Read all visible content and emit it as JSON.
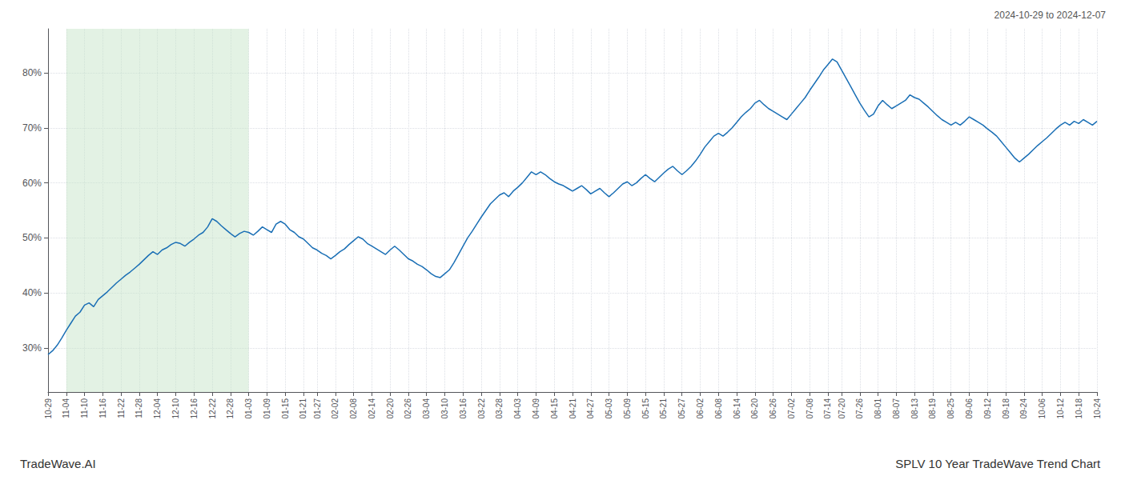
{
  "chart_data": {
    "type": "line",
    "title": "SPLV 10 Year TradeWave Trend Chart",
    "subtitle": "2024-10-29 to 2024-12-07",
    "annotations": [
      "TradeWave.AI"
    ],
    "color": "#1a6fb5",
    "grid": true,
    "ylim": [
      22,
      88
    ],
    "yticks": [
      {
        "value": 30,
        "label": "30%"
      },
      {
        "value": 40,
        "label": "40%"
      },
      {
        "value": 50,
        "label": "50%"
      },
      {
        "value": 60,
        "label": "60%"
      },
      {
        "value": 70,
        "label": "70%"
      },
      {
        "value": 80,
        "label": "80%"
      }
    ],
    "shaded": {
      "from": "11-04",
      "to": "01-03",
      "color": "#c8e6c9"
    },
    "categories": [
      "10-29",
      null,
      null,
      null,
      "11-04",
      null,
      null,
      null,
      "11-10",
      null,
      null,
      null,
      "11-16",
      null,
      null,
      null,
      "11-22",
      null,
      null,
      null,
      "11-28",
      null,
      null,
      null,
      "12-04",
      null,
      null,
      null,
      "12-10",
      null,
      null,
      null,
      "12-16",
      null,
      null,
      null,
      "12-22",
      null,
      null,
      null,
      "12-28",
      null,
      null,
      null,
      "01-03",
      null,
      null,
      null,
      "01-09",
      null,
      null,
      null,
      "01-15",
      null,
      null,
      null,
      "01-21",
      null,
      null,
      "01-27",
      null,
      null,
      null,
      "02-02",
      null,
      null,
      null,
      "02-08",
      null,
      null,
      null,
      "02-14",
      null,
      null,
      null,
      "02-20",
      null,
      null,
      null,
      "02-26",
      null,
      null,
      null,
      "03-04",
      null,
      null,
      null,
      "03-10",
      null,
      null,
      null,
      "03-16",
      null,
      null,
      null,
      "03-22",
      null,
      null,
      null,
      "03-28",
      null,
      null,
      null,
      "04-03",
      null,
      null,
      null,
      "04-09",
      null,
      null,
      null,
      "04-15",
      null,
      null,
      null,
      "04-21",
      null,
      null,
      null,
      "04-27",
      null,
      null,
      null,
      "05-03",
      null,
      null,
      null,
      "05-09",
      null,
      null,
      null,
      "05-15",
      null,
      null,
      null,
      "05-21",
      null,
      null,
      null,
      "05-27",
      null,
      null,
      null,
      "06-02",
      null,
      null,
      null,
      "06-08",
      null,
      null,
      null,
      "06-14",
      null,
      null,
      null,
      "06-20",
      null,
      null,
      null,
      "06-26",
      null,
      null,
      null,
      "07-02",
      null,
      null,
      null,
      "07-08",
      null,
      null,
      null,
      "07-14",
      null,
      null,
      "07-20",
      null,
      null,
      null,
      "07-26",
      null,
      null,
      null,
      "08-01",
      null,
      null,
      null,
      "08-07",
      null,
      null,
      null,
      "08-13",
      null,
      null,
      null,
      "08-19",
      null,
      null,
      null,
      "08-25",
      null,
      null,
      null,
      "09-06",
      null,
      null,
      null,
      "09-12",
      null,
      null,
      null,
      "09-18",
      null,
      null,
      null,
      "09-24",
      null,
      null,
      null,
      "10-06",
      null,
      null,
      null,
      "10-12",
      null,
      null,
      null,
      "10-18",
      null,
      null,
      null,
      "10-24"
    ],
    "values": [
      28.8,
      29.5,
      30.5,
      31.8,
      33.2,
      34.5,
      35.8,
      36.5,
      37.8,
      38.2,
      37.5,
      38.8,
      39.5,
      40.2,
      41.0,
      41.8,
      42.5,
      43.2,
      43.8,
      44.5,
      45.2,
      46.0,
      46.8,
      47.5,
      47.0,
      47.8,
      48.2,
      48.8,
      49.2,
      49.0,
      48.5,
      49.2,
      49.8,
      50.5,
      51.0,
      52.0,
      53.5,
      53.0,
      52.2,
      51.5,
      50.8,
      50.2,
      50.8,
      51.2,
      51.0,
      50.5,
      51.2,
      52.0,
      51.5,
      51.0,
      52.5,
      53.0,
      52.5,
      51.5,
      51.0,
      50.2,
      49.8,
      49.0,
      48.2,
      47.8,
      47.2,
      46.8,
      46.2,
      46.8,
      47.5,
      48.0,
      48.8,
      49.5,
      50.2,
      49.8,
      49.0,
      48.5,
      48.0,
      47.5,
      47.0,
      47.8,
      48.5,
      47.8,
      47.0,
      46.2,
      45.8,
      45.2,
      44.8,
      44.2,
      43.5,
      43.0,
      42.8,
      43.5,
      44.2,
      45.5,
      47.0,
      48.5,
      50.0,
      51.2,
      52.5,
      53.8,
      55.0,
      56.2,
      57.0,
      57.8,
      58.2,
      57.5,
      58.5,
      59.2,
      60.0,
      61.0,
      62.0,
      61.5,
      62.0,
      61.5,
      60.8,
      60.2,
      59.8,
      59.5,
      59.0,
      58.5,
      59.0,
      59.5,
      58.8,
      58.0,
      58.5,
      59.0,
      58.2,
      57.5,
      58.2,
      59.0,
      59.8,
      60.2,
      59.5,
      60.0,
      60.8,
      61.5,
      60.8,
      60.2,
      61.0,
      61.8,
      62.5,
      63.0,
      62.2,
      61.5,
      62.2,
      63.0,
      64.0,
      65.2,
      66.5,
      67.5,
      68.5,
      69.0,
      68.5,
      69.2,
      70.0,
      71.0,
      72.0,
      72.8,
      73.5,
      74.5,
      75.0,
      74.2,
      73.5,
      73.0,
      72.5,
      72.0,
      71.5,
      72.5,
      73.5,
      74.5,
      75.5,
      76.8,
      78.0,
      79.2,
      80.5,
      81.5,
      82.5,
      82.0,
      80.5,
      79.0,
      77.5,
      76.0,
      74.5,
      73.2,
      72.0,
      72.5,
      74.0,
      75.0,
      74.2,
      73.5,
      74.0,
      74.5,
      75.0,
      76.0,
      75.5,
      75.2,
      74.5,
      73.8,
      73.0,
      72.2,
      71.5,
      71.0,
      70.5,
      71.0,
      70.5,
      71.2,
      72.0,
      71.5,
      71.0,
      70.5,
      69.8,
      69.2,
      68.5,
      67.5,
      66.5,
      65.5,
      64.5,
      63.8,
      64.5,
      65.2,
      66.0,
      66.8,
      67.5,
      68.2,
      69.0,
      69.8,
      70.5,
      71.0,
      70.5,
      71.2,
      70.8,
      71.5,
      71.0,
      70.5,
      71.2
    ]
  }
}
